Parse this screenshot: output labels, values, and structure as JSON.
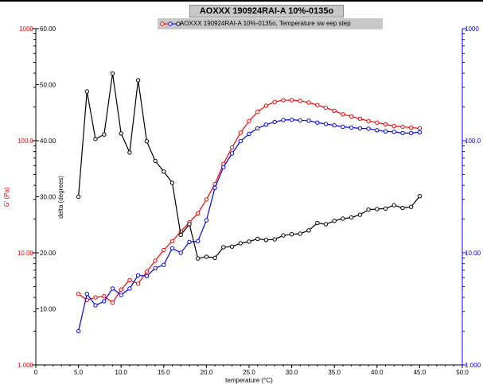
{
  "chart_data": {
    "type": "line",
    "title": "AOXXX 190924RAI-A 10%-0135o",
    "legend_text": "AOXXX 190924RAI-A 10%-0135o, Temperature sw eep step",
    "xlabel": "temperature (°C)",
    "ylabel_left": "G' (Pa)",
    "ylabel_inner": "delta (degrees)",
    "xlim": [
      0,
      50
    ],
    "x_ticks": [
      "0",
      "5.0",
      "10.0",
      "15.0",
      "20.0",
      "25.0",
      "30.0",
      "35.0",
      "40.0",
      "45.0",
      "50.0"
    ],
    "y_left": {
      "scale": "log",
      "range": [
        1,
        1000
      ],
      "ticks": [
        {
          "v": 1,
          "label": "1.000"
        },
        {
          "v": 10,
          "label": "10.00"
        },
        {
          "v": 100,
          "label": "100.0"
        },
        {
          "v": 1000,
          "label": "1000"
        }
      ],
      "color": "#ff0000"
    },
    "y_right": {
      "scale": "log",
      "range": [
        1,
        1000
      ],
      "ticks": [
        {
          "v": 1,
          "label": "1.000"
        },
        {
          "v": 10,
          "label": "10.00"
        },
        {
          "v": 100,
          "label": "100.0"
        },
        {
          "v": 1000,
          "label": "1000"
        }
      ],
      "color": "#0000ff"
    },
    "y_delta": {
      "range": [
        0,
        60
      ],
      "ticks": [
        {
          "v": 10,
          "label": "10.00"
        },
        {
          "v": 20,
          "label": "20.00"
        },
        {
          "v": 30,
          "label": "30.00"
        },
        {
          "v": 40,
          "label": "40.00"
        },
        {
          "v": 50,
          "label": "50.00"
        },
        {
          "v": 60,
          "label": "60.00"
        }
      ]
    },
    "series": [
      {
        "role": "G'",
        "color": "#ff0000",
        "axis": "left",
        "x": [
          5,
          6,
          7,
          8,
          9,
          10,
          11,
          12,
          13,
          14,
          15,
          16,
          17,
          18,
          19,
          20,
          21,
          22,
          23,
          24,
          25,
          26,
          27,
          28,
          29,
          30,
          31,
          32,
          33,
          34,
          35,
          36,
          37,
          38,
          39,
          40,
          41,
          42,
          43,
          44,
          45
        ],
        "y": [
          4.3,
          3.8,
          4.0,
          4.1,
          3.6,
          4.7,
          5.7,
          5.3,
          6.8,
          8.5,
          10.6,
          12.7,
          15.5,
          18.7,
          22.5,
          29.9,
          41,
          62,
          87,
          118,
          150,
          181,
          205,
          222,
          230,
          230,
          227,
          219,
          208,
          197,
          185,
          172,
          165,
          157,
          150,
          145,
          140,
          135,
          133,
          131,
          129
        ]
      },
      {
        "role": "G''",
        "color": "#0000ff",
        "axis": "right",
        "x": [
          5,
          6,
          7,
          8,
          9,
          10,
          11,
          12,
          13,
          14,
          15,
          16,
          17,
          18,
          19,
          20,
          21,
          22,
          23,
          24,
          25,
          26,
          27,
          28,
          29,
          30,
          31,
          32,
          33,
          34,
          35,
          36,
          37,
          38,
          39,
          40,
          41,
          42,
          43,
          44,
          45
        ],
        "y": [
          2.0,
          4.3,
          3.4,
          3.7,
          4.8,
          4.2,
          4.8,
          6.3,
          6.2,
          7.3,
          7.8,
          11.0,
          10.0,
          12.5,
          12.7,
          19.5,
          38,
          58,
          77,
          99,
          115,
          129,
          139,
          147,
          153,
          154,
          152,
          151,
          145,
          141,
          137,
          133,
          131,
          129,
          128,
          124,
          121,
          120,
          117,
          117,
          119
        ]
      },
      {
        "role": "delta",
        "color": "#000000",
        "axis": "delta",
        "x": [
          5,
          6,
          7,
          8,
          9,
          10,
          11,
          12,
          13,
          14,
          15,
          16,
          17,
          18,
          19,
          20,
          21,
          22,
          23,
          24,
          25,
          26,
          27,
          28,
          29,
          30,
          31,
          32,
          33,
          34,
          35,
          36,
          37,
          38,
          39,
          40,
          41,
          42,
          43,
          44,
          45
        ],
        "y": [
          30.0,
          48.8,
          40.3,
          41.1,
          52.0,
          41.3,
          37.9,
          50.8,
          39.9,
          36.4,
          34.5,
          32.5,
          23.2,
          25.1,
          19.0,
          19.3,
          19.1,
          21.0,
          21.1,
          21.7,
          22.0,
          22.5,
          22.3,
          22.4,
          23.1,
          23.3,
          23.4,
          24.0,
          25.3,
          25.1,
          25.7,
          26.1,
          26.3,
          26.8,
          27.7,
          27.8,
          27.9,
          28.5,
          28.0,
          28.2,
          30.1
        ]
      }
    ]
  }
}
